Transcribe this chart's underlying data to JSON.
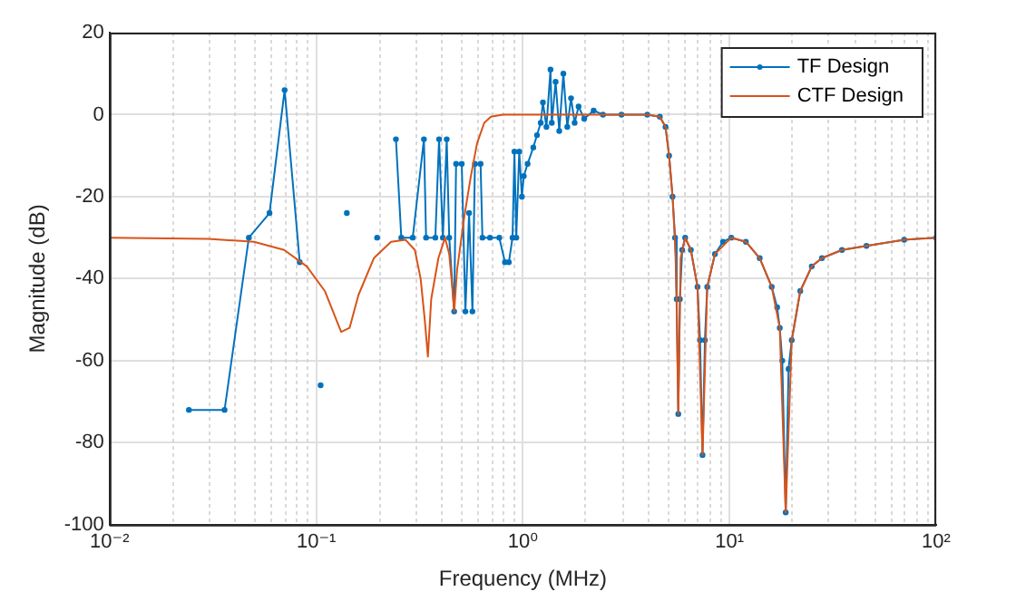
{
  "chart_data": {
    "type": "line",
    "xlabel": "Frequency (MHz)",
    "ylabel": "Magnitude (dB)",
    "log": "x",
    "grid": true,
    "legend": "top right",
    "xlim": [
      0.01,
      100
    ],
    "xticks": [
      {
        "value": 0.01,
        "label": "10⁻²"
      },
      {
        "value": 0.1,
        "label": "10⁻¹"
      },
      {
        "value": 1,
        "label": "10⁰"
      },
      {
        "value": 10,
        "label": "10¹"
      },
      {
        "value": 100,
        "label": "10²"
      }
    ],
    "ylim": [
      -100,
      20
    ],
    "yticks": [
      -100,
      -80,
      -60,
      -40,
      -20,
      0,
      20
    ],
    "series": [
      {
        "name": "TF Design",
        "color": "#0072bd",
        "marker": "circle",
        "x": [
          0.0242,
          0.036,
          0.0472,
          0.0594,
          0.0703,
          0.0832,
          0.095,
          0.105,
          0.12,
          0.1406,
          0.17,
          0.197,
          0.22,
          0.243,
          0.258,
          0.293,
          0.332,
          0.34,
          0.377,
          0.393,
          0.41,
          0.428,
          0.44,
          0.465,
          0.475,
          0.506,
          0.527,
          0.549,
          0.57,
          0.586,
          0.624,
          0.637,
          0.693,
          0.769,
          0.819,
          0.855,
          0.891,
          0.91,
          0.929,
          0.96,
          0.989,
          1.01,
          1.054,
          1.123,
          1.17,
          1.22,
          1.25,
          1.3,
          1.36,
          1.38,
          1.44,
          1.5,
          1.57,
          1.64,
          1.71,
          1.78,
          1.86,
          1.98,
          2.2,
          2.44,
          3,
          4,
          4.6,
          4.9,
          5.1,
          5.3,
          5.45,
          5.55,
          5.65,
          5.75,
          5.9,
          6.1,
          6.5,
          7,
          7.2,
          7.4,
          7.6,
          7.8,
          8.5,
          9.3,
          10.2,
          12,
          14,
          16,
          17,
          17.5,
          18,
          18.7,
          19.3,
          20,
          22,
          25,
          28,
          35,
          46,
          70,
          100
        ],
        "values": [
          -72,
          -72,
          -30,
          -24,
          6,
          -36,
          null,
          -66,
          null,
          -24,
          null,
          -30,
          null,
          -6,
          -30,
          -30,
          -6,
          -30,
          -30,
          -6,
          -30,
          -6,
          -30,
          -48,
          -12,
          -12,
          -48,
          -24,
          -48,
          -12,
          -12,
          -30,
          -30,
          -30,
          -36,
          -36,
          -30,
          -9,
          -30,
          -9,
          -20,
          -15,
          -12,
          -8,
          -5,
          -2,
          3,
          -3,
          11,
          -2,
          8,
          -4,
          10,
          -3,
          4,
          -2,
          2,
          -1,
          1,
          0,
          0,
          0,
          -0.5,
          -3,
          -10,
          -20,
          -30,
          -45,
          -73,
          -45,
          -33,
          -30,
          -33,
          -42,
          -55,
          -83,
          -55,
          -42,
          -34,
          -31,
          -30,
          -31,
          -35,
          -42,
          -47,
          -52,
          -60,
          -97,
          -62,
          -55,
          -43,
          -37,
          -35,
          -33,
          -32,
          -30.5,
          -30
        ]
      },
      {
        "name": "CTF Design",
        "color": "#d95319",
        "marker": "none",
        "x": [
          0.01,
          0.03,
          0.05,
          0.07,
          0.09,
          0.11,
          0.125,
          0.132,
          0.145,
          0.16,
          0.19,
          0.23,
          0.27,
          0.3,
          0.32,
          0.335,
          0.347,
          0.36,
          0.39,
          0.42,
          0.44,
          0.455,
          0.465,
          0.48,
          0.52,
          0.56,
          0.6,
          0.65,
          0.7,
          0.8,
          1,
          2,
          4,
          4.6,
          4.9,
          5.1,
          5.3,
          5.5,
          5.65,
          5.8,
          6.1,
          6.5,
          7,
          7.4,
          7.8,
          8.5,
          10.2,
          12,
          14,
          16,
          17.5,
          18.7,
          20,
          22,
          25,
          28,
          35,
          46,
          70,
          100
        ],
        "values": [
          -30,
          -30.3,
          -31,
          -33,
          -37,
          -43,
          -50,
          -53,
          -52,
          -44,
          -35,
          -31,
          -30.5,
          -33,
          -40,
          -50,
          -59,
          -45,
          -35,
          -30,
          -34,
          -42,
          -48,
          -38,
          -25,
          -15,
          -7,
          -2,
          -0.5,
          0,
          0,
          0,
          0,
          -0.5,
          -3,
          -10,
          -20,
          -35,
          -73,
          -35,
          -30,
          -33,
          -42,
          -83,
          -42,
          -34,
          -30,
          -31,
          -35,
          -42,
          -52,
          -97,
          -55,
          -43,
          -37,
          -35,
          -33,
          -32,
          -30.5,
          -30
        ]
      }
    ]
  }
}
